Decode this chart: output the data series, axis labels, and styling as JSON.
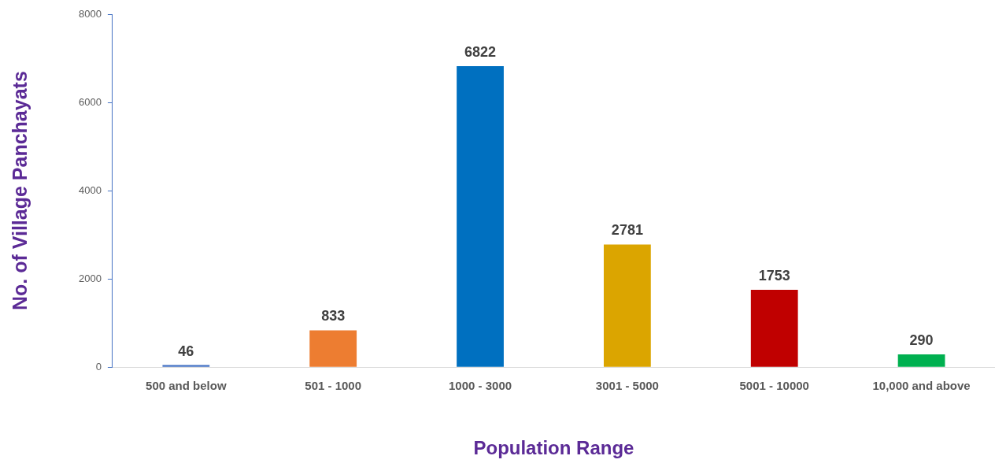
{
  "chart_data": {
    "type": "bar",
    "xlabel": "Population Range",
    "ylabel": "No. of Village Panchayats",
    "categories": [
      "500 and below",
      "501 - 1000",
      "1000 - 3000",
      "3001 - 5000",
      "5001 - 10000",
      "10,000 and above"
    ],
    "values": [
      46,
      833,
      6822,
      2781,
      1753,
      290
    ],
    "colors": [
      "#4472c4",
      "#ed7d31",
      "#0070c0",
      "#dba500",
      "#c00000",
      "#00b050"
    ],
    "ylim": [
      0,
      8000
    ],
    "yticks": [
      0,
      2000,
      4000,
      6000,
      8000
    ],
    "data_labels": true
  }
}
